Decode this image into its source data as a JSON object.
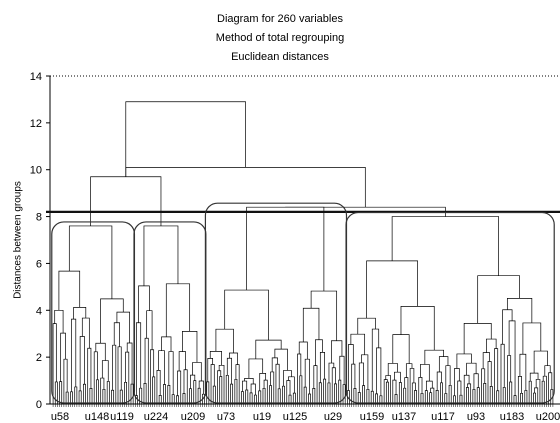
{
  "chart_data": {
    "type": "dendrogram",
    "title_lines": [
      "Diagram for 260 variables",
      "Method of total regrouping",
      "Euclidean distances"
    ],
    "xlabel": "",
    "ylabel": "Distances between groups",
    "ylim": [
      0,
      14
    ],
    "y_ticks": [
      0,
      2,
      4,
      6,
      8,
      10,
      12,
      14
    ],
    "x_tick_labels": [
      "u58",
      "u148",
      "u119",
      "u224",
      "u209",
      "u73",
      "u19",
      "u125",
      "u29",
      "u159",
      "u137",
      "u117",
      "u93",
      "u183",
      "u200"
    ],
    "cut_line": 8.2,
    "grid": false,
    "clusters": [
      {
        "label_range": [
          "u58",
          "u119"
        ],
        "merge_height": 7.6
      },
      {
        "label_range": [
          "u224",
          "u209"
        ],
        "merge_height": 7.6
      },
      {
        "label_range": [
          "u73",
          "u29"
        ],
        "merge_height": 8.4
      },
      {
        "label_range": [
          "u159",
          "u200"
        ],
        "merge_height": 8.0
      }
    ],
    "upper_merges": [
      {
        "name": "cluster1-cluster2",
        "height": 9.7
      },
      {
        "name": "cluster3-cluster4",
        "height": 8.4
      },
      {
        "name": "right-group",
        "height": 10.1
      },
      {
        "name": "root",
        "height": 12.9
      }
    ]
  }
}
